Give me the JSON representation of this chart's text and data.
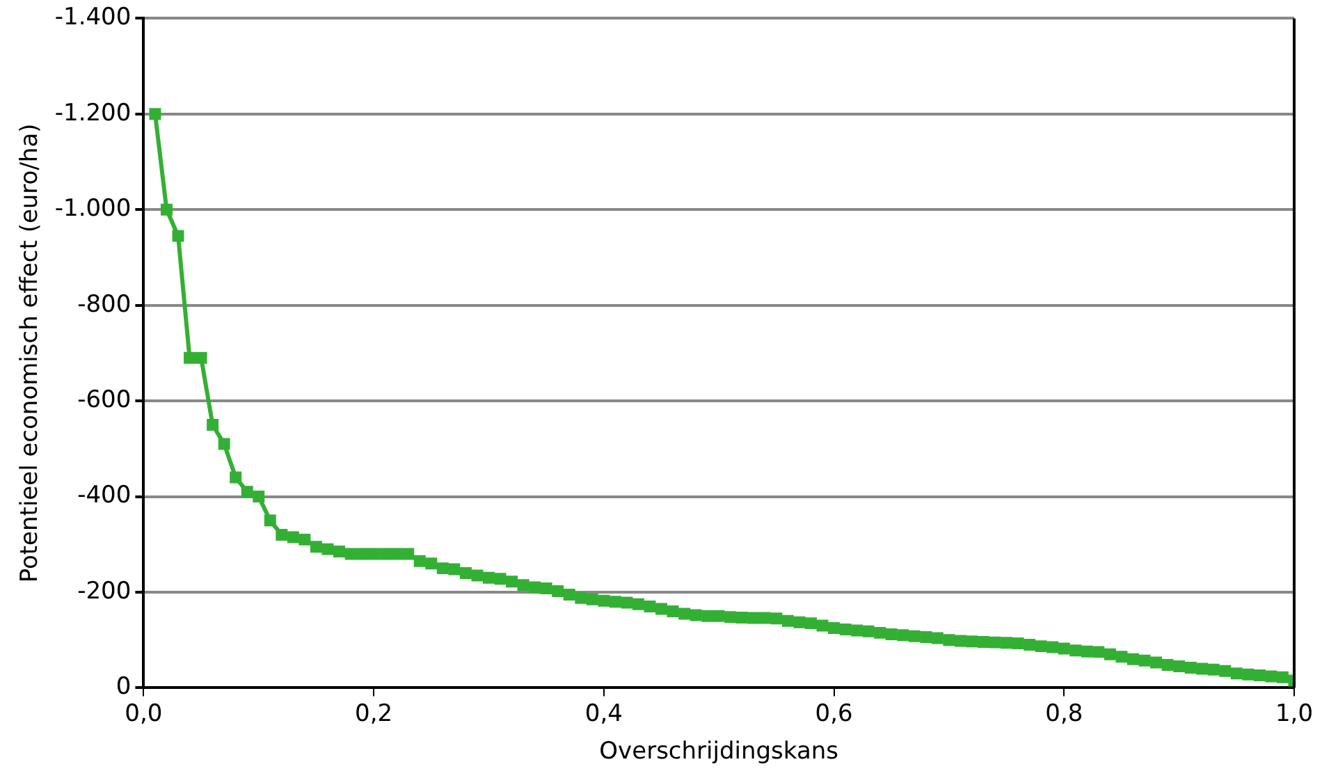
{
  "chart_data": {
    "type": "line",
    "xlabel": "Overschrijdingskans",
    "ylabel": "Potentieel economisch effect (euro/ha)",
    "x": [
      0.01,
      0.02,
      0.03,
      0.04,
      0.05,
      0.06,
      0.07,
      0.08,
      0.09,
      0.1,
      0.11,
      0.12,
      0.13,
      0.14,
      0.15,
      0.16,
      0.17,
      0.18,
      0.19,
      0.2,
      0.21,
      0.22,
      0.23,
      0.24,
      0.25,
      0.26,
      0.27,
      0.28,
      0.29,
      0.3,
      0.31,
      0.32,
      0.33,
      0.34,
      0.35,
      0.36,
      0.37,
      0.38,
      0.39,
      0.4,
      0.41,
      0.42,
      0.43,
      0.44,
      0.45,
      0.46,
      0.47,
      0.48,
      0.49,
      0.5,
      0.51,
      0.52,
      0.53,
      0.54,
      0.55,
      0.56,
      0.57,
      0.58,
      0.59,
      0.6,
      0.61,
      0.62,
      0.63,
      0.64,
      0.65,
      0.66,
      0.67,
      0.68,
      0.69,
      0.7,
      0.71,
      0.72,
      0.73,
      0.74,
      0.75,
      0.76,
      0.77,
      0.78,
      0.79,
      0.8,
      0.81,
      0.82,
      0.83,
      0.84,
      0.85,
      0.86,
      0.87,
      0.88,
      0.89,
      0.9,
      0.91,
      0.92,
      0.93,
      0.94,
      0.95,
      0.96,
      0.97,
      0.98,
      0.99,
      1.0
    ],
    "series": [
      {
        "color": "#33b033",
        "values": [
          -1200,
          -1000,
          -945,
          -690,
          -690,
          -550,
          -510,
          -440,
          -410,
          -400,
          -350,
          -320,
          -315,
          -310,
          -295,
          -290,
          -285,
          -280,
          -280,
          -280,
          -280,
          -280,
          -280,
          -265,
          -260,
          -250,
          -248,
          -240,
          -235,
          -230,
          -228,
          -222,
          -215,
          -210,
          -208,
          -202,
          -195,
          -188,
          -185,
          -182,
          -180,
          -178,
          -175,
          -170,
          -165,
          -160,
          -155,
          -152,
          -150,
          -150,
          -148,
          -147,
          -146,
          -146,
          -145,
          -140,
          -137,
          -135,
          -130,
          -125,
          -122,
          -120,
          -118,
          -115,
          -112,
          -110,
          -108,
          -106,
          -104,
          -100,
          -98,
          -97,
          -96,
          -95,
          -94,
          -93,
          -90,
          -87,
          -85,
          -82,
          -78,
          -76,
          -75,
          -70,
          -65,
          -60,
          -57,
          -53,
          -48,
          -45,
          -42,
          -40,
          -38,
          -35,
          -30,
          -28,
          -26,
          -24,
          -22,
          -15
        ]
      }
    ],
    "xlim": [
      0,
      1
    ],
    "xticks": [
      {
        "value": 0,
        "label": "0,0"
      },
      {
        "value": 0.2,
        "label": "0,2"
      },
      {
        "value": 0.4,
        "label": "0,4"
      },
      {
        "value": 0.6,
        "label": "0,6"
      },
      {
        "value": 0.8,
        "label": "0,8"
      },
      {
        "value": 1,
        "label": "1,0"
      }
    ],
    "ylim": [
      0,
      -1400
    ],
    "yticks": [
      0,
      {
        "value": -200,
        "label": "-200"
      },
      {
        "value": -400,
        "label": "-400"
      },
      {
        "value": -600,
        "label": "-600"
      },
      {
        "value": -800,
        "label": "-800"
      },
      {
        "value": -1000,
        "label": "-1.000"
      },
      {
        "value": -1200,
        "label": "-1.200"
      },
      {
        "value": -1400,
        "label": "-1.400"
      }
    ],
    "grid": "y",
    "marker": "square",
    "line_style": "solid",
    "legend": false
  }
}
